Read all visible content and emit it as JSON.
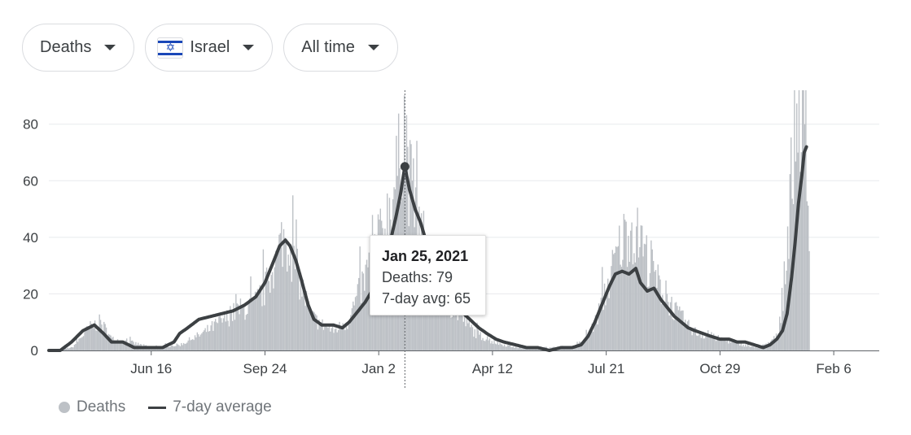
{
  "filters": {
    "metric": "Deaths",
    "country": "Israel",
    "range": "All time"
  },
  "colors": {
    "bars": "#bdc1c6",
    "line": "#3c4043",
    "grid": "#e8eaed",
    "axis": "#5f6368"
  },
  "tooltip": {
    "date": "Jan 25, 2021",
    "deaths_line": "Deaths: 79",
    "avg_line": "7-day avg: 65"
  },
  "legend": {
    "bars_label": "Deaths",
    "line_label": "7-day average"
  },
  "chart_data": {
    "type": "bar",
    "title": "",
    "xlabel": "",
    "ylabel": "",
    "ylim": [
      0,
      92
    ],
    "yticks": [
      0,
      20,
      40,
      60,
      80
    ],
    "xticks": [
      "Jun 16",
      "Sep 24",
      "Jan 2",
      "Apr 12",
      "Jul 21",
      "Oct 29",
      "Feb 6"
    ],
    "grid": true,
    "legend_position": "bottom-left",
    "x_range_days": [
      0,
      730
    ],
    "xtick_days": [
      90,
      190,
      290,
      390,
      490,
      590,
      690
    ],
    "hover_day": 313,
    "series": [
      {
        "name": "Deaths",
        "kind": "bars",
        "keypoints": [
          [
            0,
            0
          ],
          [
            20,
            1
          ],
          [
            35,
            8
          ],
          [
            45,
            10
          ],
          [
            55,
            4
          ],
          [
            70,
            3
          ],
          [
            80,
            2
          ],
          [
            90,
            1
          ],
          [
            115,
            2
          ],
          [
            135,
            6
          ],
          [
            150,
            10
          ],
          [
            165,
            14
          ],
          [
            180,
            16
          ],
          [
            190,
            22
          ],
          [
            200,
            32
          ],
          [
            205,
            40
          ],
          [
            212,
            36
          ],
          [
            220,
            25
          ],
          [
            230,
            12
          ],
          [
            240,
            9
          ],
          [
            250,
            7
          ],
          [
            262,
            10
          ],
          [
            272,
            20
          ],
          [
            282,
            30
          ],
          [
            292,
            40
          ],
          [
            300,
            52
          ],
          [
            307,
            65
          ],
          [
            312,
            82
          ],
          [
            316,
            62
          ],
          [
            322,
            48
          ],
          [
            330,
            38
          ],
          [
            340,
            25
          ],
          [
            350,
            17
          ],
          [
            362,
            12
          ],
          [
            375,
            6
          ],
          [
            390,
            3
          ],
          [
            410,
            1
          ],
          [
            440,
            1
          ],
          [
            460,
            1
          ],
          [
            470,
            3
          ],
          [
            480,
            10
          ],
          [
            490,
            22
          ],
          [
            500,
            35
          ],
          [
            510,
            44
          ],
          [
            520,
            38
          ],
          [
            530,
            28
          ],
          [
            540,
            20
          ],
          [
            550,
            14
          ],
          [
            560,
            9
          ],
          [
            570,
            6
          ],
          [
            580,
            5
          ],
          [
            590,
            4
          ],
          [
            600,
            3
          ],
          [
            610,
            2
          ],
          [
            620,
            1
          ],
          [
            630,
            2
          ],
          [
            640,
            5
          ],
          [
            647,
            25
          ],
          [
            652,
            60
          ],
          [
            656,
            82
          ],
          [
            660,
            88
          ],
          [
            665,
            65
          ],
          [
            668,
            45
          ]
        ]
      },
      {
        "name": "7-day average",
        "kind": "line",
        "keypoints": [
          [
            0,
            0
          ],
          [
            10,
            0
          ],
          [
            20,
            3
          ],
          [
            30,
            7
          ],
          [
            40,
            9
          ],
          [
            48,
            6
          ],
          [
            55,
            3
          ],
          [
            65,
            3
          ],
          [
            75,
            1
          ],
          [
            90,
            1
          ],
          [
            100,
            1
          ],
          [
            110,
            3
          ],
          [
            115,
            6
          ],
          [
            122,
            8
          ],
          [
            132,
            11
          ],
          [
            142,
            12
          ],
          [
            152,
            13
          ],
          [
            162,
            14
          ],
          [
            172,
            16
          ],
          [
            182,
            19
          ],
          [
            190,
            24
          ],
          [
            197,
            31
          ],
          [
            203,
            37
          ],
          [
            208,
            39
          ],
          [
            212,
            37
          ],
          [
            217,
            32
          ],
          [
            222,
            25
          ],
          [
            228,
            16
          ],
          [
            233,
            11
          ],
          [
            240,
            9
          ],
          [
            250,
            9
          ],
          [
            258,
            8
          ],
          [
            264,
            10
          ],
          [
            270,
            13
          ],
          [
            278,
            17
          ],
          [
            284,
            21
          ],
          [
            290,
            26
          ],
          [
            296,
            34
          ],
          [
            301,
            40
          ],
          [
            305,
            47
          ],
          [
            309,
            55
          ],
          [
            313,
            65
          ],
          [
            317,
            57
          ],
          [
            322,
            50
          ],
          [
            327,
            45
          ],
          [
            332,
            38
          ],
          [
            338,
            30
          ],
          [
            344,
            24
          ],
          [
            350,
            19
          ],
          [
            356,
            16
          ],
          [
            362,
            14
          ],
          [
            370,
            11
          ],
          [
            378,
            8
          ],
          [
            385,
            6
          ],
          [
            393,
            4
          ],
          [
            400,
            3
          ],
          [
            410,
            2
          ],
          [
            420,
            1
          ],
          [
            430,
            1
          ],
          [
            440,
            0
          ],
          [
            450,
            1
          ],
          [
            460,
            1
          ],
          [
            468,
            2
          ],
          [
            474,
            5
          ],
          [
            480,
            10
          ],
          [
            486,
            16
          ],
          [
            492,
            22
          ],
          [
            498,
            27
          ],
          [
            504,
            28
          ],
          [
            510,
            27
          ],
          [
            516,
            29
          ],
          [
            520,
            24
          ],
          [
            526,
            21
          ],
          [
            532,
            22
          ],
          [
            538,
            18
          ],
          [
            544,
            15
          ],
          [
            550,
            12
          ],
          [
            556,
            10
          ],
          [
            562,
            8
          ],
          [
            568,
            7
          ],
          [
            575,
            6
          ],
          [
            582,
            5
          ],
          [
            590,
            4
          ],
          [
            598,
            4
          ],
          [
            605,
            3
          ],
          [
            612,
            3
          ],
          [
            620,
            2
          ],
          [
            628,
            1
          ],
          [
            634,
            2
          ],
          [
            640,
            4
          ],
          [
            645,
            7
          ],
          [
            649,
            13
          ],
          [
            653,
            26
          ],
          [
            656,
            38
          ],
          [
            659,
            52
          ],
          [
            662,
            62
          ],
          [
            664,
            70
          ],
          [
            666,
            72
          ]
        ]
      }
    ]
  }
}
